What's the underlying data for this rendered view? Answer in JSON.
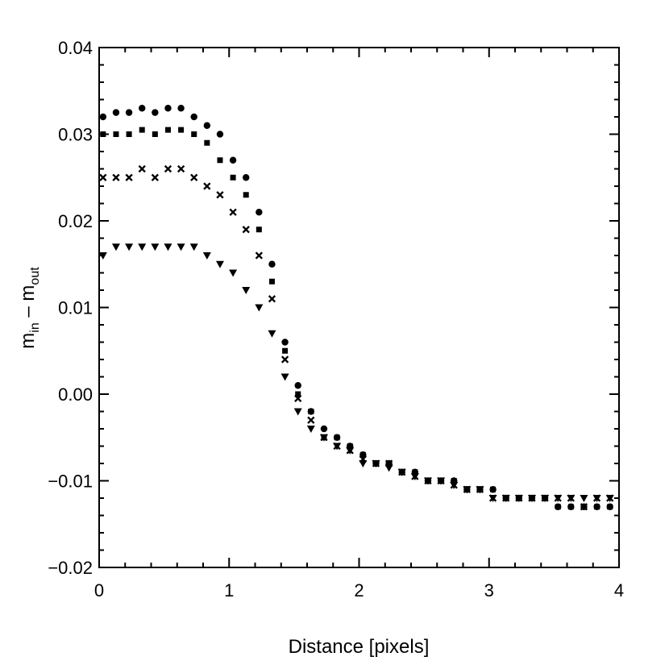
{
  "chart_data": {
    "type": "scatter",
    "xlabel": "Distance [pixels]",
    "ylabel": {
      "base1": "m",
      "sub1": "in",
      "mid": " – ",
      "base2": "m",
      "sub2": "out"
    },
    "xlim": [
      0,
      4
    ],
    "ylim": [
      -0.02,
      0.04
    ],
    "xticks": [
      {
        "value": 0,
        "label": "0"
      },
      {
        "value": 1,
        "label": "1"
      },
      {
        "value": 2,
        "label": "2"
      },
      {
        "value": 3,
        "label": "3"
      },
      {
        "value": 4,
        "label": "4"
      }
    ],
    "yticks": [
      {
        "value": -0.02,
        "label": "−0.02"
      },
      {
        "value": -0.01,
        "label": "−0.01"
      },
      {
        "value": 0.0,
        "label": "0.00"
      },
      {
        "value": 0.01,
        "label": "0.01"
      },
      {
        "value": 0.02,
        "label": "0.02"
      },
      {
        "value": 0.03,
        "label": "0.03"
      },
      {
        "value": 0.04,
        "label": "0.04"
      }
    ],
    "grid": false,
    "x": [
      0.03,
      0.13,
      0.23,
      0.33,
      0.43,
      0.53,
      0.63,
      0.73,
      0.83,
      0.93,
      1.03,
      1.13,
      1.23,
      1.33,
      1.43,
      1.53,
      1.63,
      1.73,
      1.83,
      1.93,
      2.03,
      2.13,
      2.23,
      2.33,
      2.43,
      2.53,
      2.63,
      2.73,
      2.83,
      2.93,
      3.03,
      3.13,
      3.23,
      3.33,
      3.43,
      3.53,
      3.63,
      3.73,
      3.83,
      3.93
    ],
    "series": [
      {
        "marker": "circle",
        "values": [
          0.032,
          0.0325,
          0.0325,
          0.033,
          0.0325,
          0.033,
          0.033,
          0.032,
          0.031,
          0.03,
          0.027,
          0.025,
          0.021,
          0.015,
          0.006,
          0.001,
          -0.002,
          -0.004,
          -0.005,
          -0.006,
          -0.007,
          -0.008,
          -0.008,
          -0.009,
          -0.009,
          -0.01,
          -0.01,
          -0.01,
          -0.011,
          -0.011,
          -0.011,
          -0.012,
          -0.012,
          -0.012,
          -0.012,
          -0.013,
          -0.013,
          -0.013,
          -0.013,
          -0.013
        ]
      },
      {
        "marker": "square",
        "values": [
          0.03,
          0.03,
          0.03,
          0.0305,
          0.03,
          0.0305,
          0.0305,
          0.03,
          0.029,
          0.027,
          0.025,
          0.023,
          0.019,
          0.013,
          0.005,
          0.0,
          -0.002,
          -0.005,
          -0.005,
          -0.006,
          -0.007,
          -0.008,
          -0.008,
          -0.009,
          -0.009,
          -0.01,
          -0.01,
          -0.01,
          -0.011,
          -0.011,
          -0.011,
          -0.012,
          -0.012,
          -0.012,
          -0.012,
          -0.013,
          -0.013,
          -0.013,
          -0.013,
          -0.013
        ]
      },
      {
        "marker": "cross",
        "values": [
          0.025,
          0.025,
          0.025,
          0.026,
          0.025,
          0.026,
          0.026,
          0.025,
          0.024,
          0.023,
          0.021,
          0.019,
          0.016,
          0.011,
          0.004,
          -0.0005,
          -0.003,
          -0.005,
          -0.006,
          -0.0065,
          -0.0075,
          -0.008,
          -0.008,
          -0.009,
          -0.0095,
          -0.01,
          -0.01,
          -0.0105,
          -0.011,
          -0.011,
          -0.012,
          -0.012,
          -0.012,
          -0.012,
          -0.012,
          -0.012,
          -0.012,
          -0.013,
          -0.012,
          -0.012
        ]
      },
      {
        "marker": "triangle-down",
        "values": [
          0.016,
          0.017,
          0.017,
          0.017,
          0.017,
          0.017,
          0.017,
          0.017,
          0.016,
          0.015,
          0.014,
          0.012,
          0.01,
          0.007,
          0.002,
          -0.002,
          -0.004,
          -0.005,
          -0.006,
          -0.0065,
          -0.008,
          -0.008,
          -0.0085,
          -0.009,
          -0.0095,
          -0.01,
          -0.01,
          -0.0105,
          -0.011,
          -0.011,
          -0.012,
          -0.012,
          -0.012,
          -0.012,
          -0.012,
          -0.012,
          -0.012,
          -0.012,
          -0.012,
          -0.012
        ]
      }
    ]
  }
}
